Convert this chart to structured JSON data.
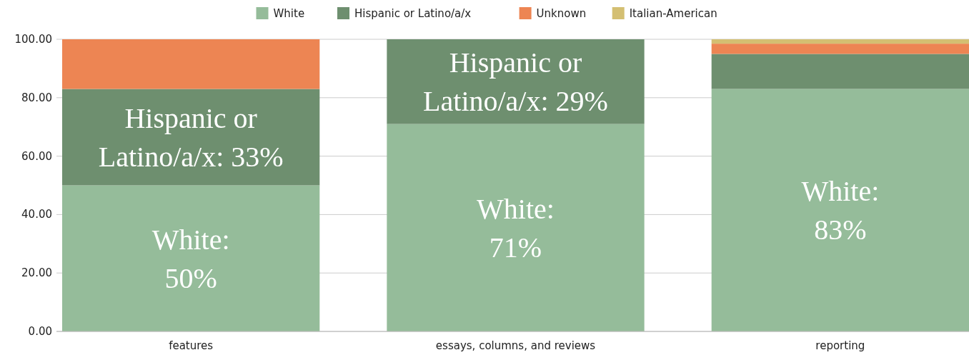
{
  "chart_data": {
    "type": "bar",
    "stacked": true,
    "categories": [
      "features",
      "essays, columns, and reviews",
      "reporting"
    ],
    "series": [
      {
        "name": "White",
        "color": "#95bc9a",
        "values": [
          50,
          71,
          83
        ],
        "value_labels": [
          "White: 50%",
          "White: 71%",
          "White: 83%"
        ]
      },
      {
        "name": "Hispanic or Latino/a/x",
        "color": "#6e8f6f",
        "values": [
          33,
          29,
          12
        ],
        "value_labels": [
          "Hispanic or Latino/a/x: 33%",
          "Hispanic or Latino/a/x: 29%",
          null
        ]
      },
      {
        "name": "Unknown",
        "color": "#ed8553",
        "values": [
          17,
          0,
          3.5
        ]
      },
      {
        "name": "Italian-American",
        "color": "#d4bf72",
        "values": [
          0,
          0,
          1.5
        ]
      }
    ],
    "ylim": [
      0,
      100
    ],
    "yticks": [
      {
        "value": 0,
        "label": "0.00"
      },
      {
        "value": 20,
        "label": "20.00"
      },
      {
        "value": 40,
        "label": "40.00"
      },
      {
        "value": 60,
        "label": "60.00"
      },
      {
        "value": 80,
        "label": "80.00"
      },
      {
        "value": 100,
        "label": "100.00"
      }
    ],
    "grid": "y",
    "legend": "top"
  }
}
